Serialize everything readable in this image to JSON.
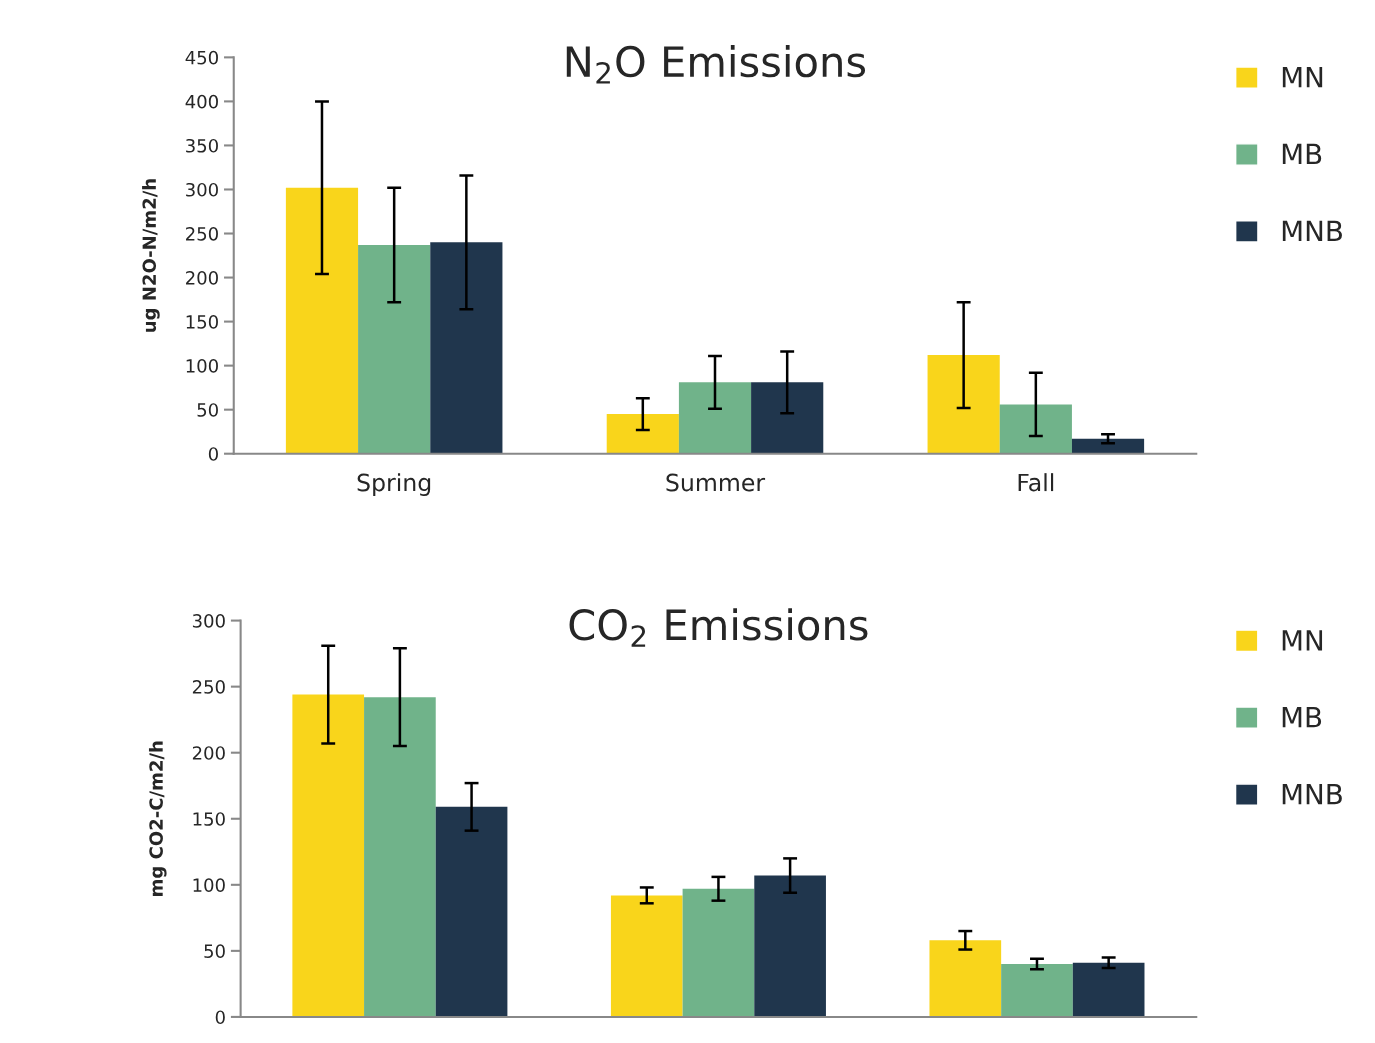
{
  "chart_data": [
    {
      "type": "bar",
      "title": "N$_{2}$O Emissions",
      "ylabel": "ug N2O-N/m2/h",
      "categories": [
        "Spring",
        "Summer",
        "Fall"
      ],
      "ylim": [
        0,
        450
      ],
      "yticks": [
        0,
        50,
        100,
        150,
        200,
        250,
        300,
        350,
        400,
        450
      ],
      "grid": false,
      "legend": "right",
      "series": [
        {
          "name": "MN",
          "color": "#f9d51b",
          "values": [
            302,
            45,
            112
          ],
          "errors": [
            98,
            18,
            60
          ]
        },
        {
          "name": "MB",
          "color": "#70b38a",
          "values": [
            237,
            81,
            56
          ],
          "errors": [
            65,
            30,
            36
          ]
        },
        {
          "name": "MNB",
          "color": "#20364d",
          "values": [
            240,
            81,
            17
          ],
          "errors": [
            76,
            35,
            5
          ]
        }
      ]
    },
    {
      "type": "bar",
      "title": "CO$_{2}$ Emissions",
      "ylabel": "mg CO2-C/m2/h",
      "categories": [
        null,
        null,
        null
      ],
      "ylim": [
        0,
        300
      ],
      "yticks": [
        0,
        50,
        100,
        150,
        200,
        250,
        300
      ],
      "grid": false,
      "legend": "right",
      "series": [
        {
          "name": "MN",
          "color": "#f9d51b",
          "values": [
            244,
            92,
            58
          ],
          "errors": [
            37,
            6,
            7
          ]
        },
        {
          "name": "MB",
          "color": "#70b38a",
          "values": [
            242,
            97,
            40
          ],
          "errors": [
            37,
            9,
            4
          ]
        },
        {
          "name": "MNB",
          "color": "#20364d",
          "values": [
            159,
            107,
            41
          ],
          "errors": [
            18,
            13,
            4
          ]
        }
      ]
    }
  ]
}
